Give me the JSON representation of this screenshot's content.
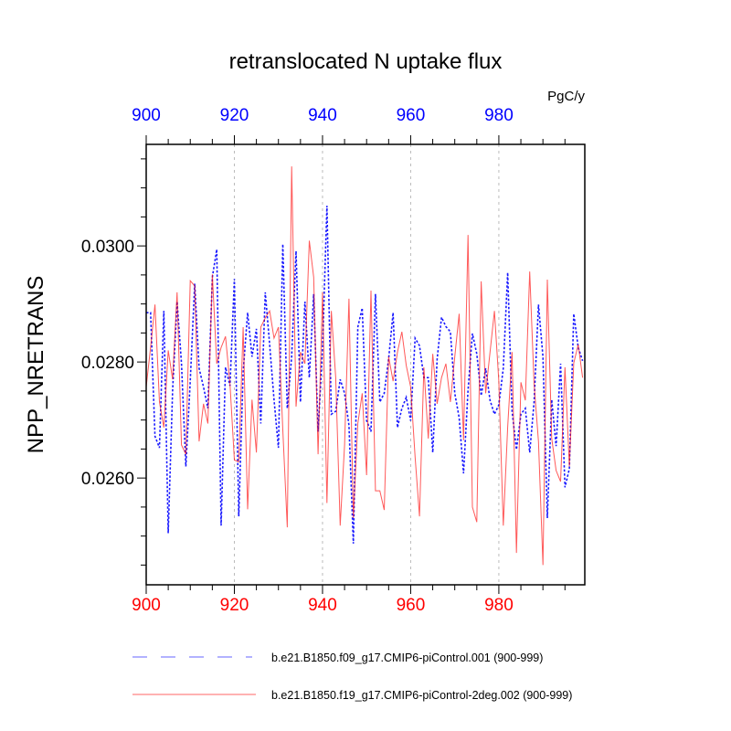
{
  "chart_data": {
    "type": "line",
    "title": "retranslocated N uptake flux",
    "units": "PgC/y",
    "xlabel": "",
    "ylabel": "NPP_NRETRANS",
    "xlim": [
      900,
      999
    ],
    "ylim": [
      0.02416,
      0.03175
    ],
    "x_ticks": [
      900,
      920,
      940,
      960,
      980
    ],
    "x_tick_labels": [
      "900",
      "920",
      "940",
      "960",
      "980"
    ],
    "top_x_tick_labels": [
      "900",
      "920",
      "940",
      "960",
      "980"
    ],
    "y_ticks": [
      0.026,
      0.028,
      0.03
    ],
    "y_tick_labels": [
      "0.0260",
      "0.0280",
      "0.0300"
    ],
    "grid": "vertical dashed at major x ticks",
    "legend_placement": "bottom",
    "colors": {
      "bottom_axis": "#ff0000",
      "top_axis": "#0000ff"
    },
    "x_start": 900,
    "series": [
      {
        "name": "b.e21.B1850.f09_g17.CMIP6-piControl.001 (900-999)",
        "color": "#0000ff",
        "style": "dashed",
        "values": [
          0.02885,
          0.02885,
          0.02672,
          0.02652,
          0.02888,
          0.02505,
          0.02751,
          0.02904,
          0.02798,
          0.0262,
          0.02767,
          0.02935,
          0.02789,
          0.02757,
          0.0272,
          0.02946,
          0.02994,
          0.02518,
          0.02791,
          0.02759,
          0.02943,
          0.02534,
          0.02783,
          0.02885,
          0.02809,
          0.02857,
          0.02694,
          0.0292,
          0.0283,
          0.02735,
          0.02652,
          0.03003,
          0.0272,
          0.02809,
          0.02991,
          0.02731,
          0.02904,
          0.02773,
          0.02917,
          0.0268,
          0.02825,
          0.03069,
          0.0271,
          0.02715,
          0.0277,
          0.02746,
          0.02691,
          0.02487,
          0.0286,
          0.02893,
          0.02699,
          0.0268,
          0.02917,
          0.02731,
          0.02746,
          0.02805,
          0.02885,
          0.02687,
          0.0272,
          0.02739,
          0.02699,
          0.02841,
          0.02828,
          0.02773,
          0.02773,
          0.02644,
          0.02805,
          0.02877,
          0.02861,
          0.02852,
          0.02746,
          0.02704,
          0.02608,
          0.02751,
          0.02849,
          0.02814,
          0.02742,
          0.02789,
          0.02734,
          0.0271,
          0.02726,
          0.02789,
          0.02954,
          0.02715,
          0.02649,
          0.0271,
          0.0272,
          0.02644,
          0.02731,
          0.02899,
          0.02809,
          0.02531,
          0.02735,
          0.02655,
          0.02797,
          0.02584,
          0.02616,
          0.02883,
          0.02825,
          0.02802
        ]
      },
      {
        "name": "b.e21.B1850.f19_g17.CMIP6-piControl-2deg.002 (900-999)",
        "color": "#ff0000",
        "style": "solid",
        "values": [
          0.02757,
          0.02825,
          0.02899,
          0.02731,
          0.02687,
          0.0282,
          0.0277,
          0.0292,
          0.02657,
          0.02641,
          0.0294,
          0.02931,
          0.02663,
          0.02728,
          0.02694,
          0.02951,
          0.02797,
          0.02825,
          0.02844,
          0.02762,
          0.02631,
          0.02628,
          0.0286,
          0.02546,
          0.02735,
          0.02644,
          0.0286,
          0.02876,
          0.02888,
          0.02841,
          0.0286,
          0.02683,
          0.02515,
          0.03137,
          0.02723,
          0.02817,
          0.02797,
          0.03009,
          0.02946,
          0.02641,
          0.0292,
          0.02557,
          0.02888,
          0.02773,
          0.02518,
          0.02657,
          0.02909,
          0.02531,
          0.02694,
          0.02746,
          0.02605,
          0.02923,
          0.02578,
          0.02578,
          0.02545,
          0.02809,
          0.02767,
          0.02817,
          0.02852,
          0.02794,
          0.02757,
          0.02636,
          0.02534,
          0.02791,
          0.02668,
          0.02814,
          0.02728,
          0.02773,
          0.02797,
          0.02731,
          0.02809,
          0.02883,
          0.02665,
          0.03019,
          0.0255,
          0.02524,
          0.02939,
          0.02746,
          0.02817,
          0.02888,
          0.02767,
          0.02518,
          0.02688,
          0.02817,
          0.02471,
          0.02765,
          0.02734,
          0.02956,
          0.02762,
          0.02663,
          0.0245,
          0.02942,
          0.02668,
          0.02613,
          0.02594,
          0.02791,
          0.0262,
          0.02798,
          0.0283,
          0.02773
        ]
      }
    ]
  }
}
